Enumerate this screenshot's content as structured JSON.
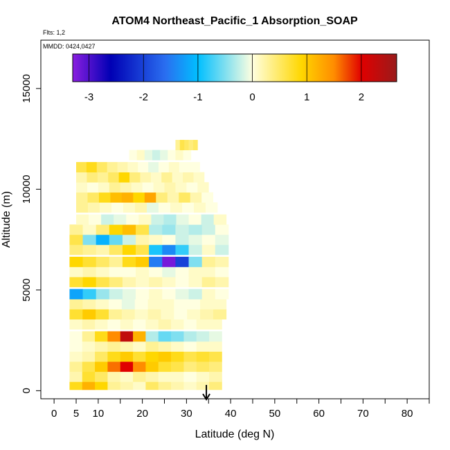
{
  "chart_data": {
    "type": "heatmap",
    "title": "ATOM4 Northeast_Pacific_1 Absorption_SOAP",
    "flights_label": "Flts: 1,2",
    "mmdd_label": "MMDD: 0424,0427",
    "xlabel": "Latitude (deg N)",
    "ylabel": "Altitude (m)",
    "xlim": [
      -3,
      85
    ],
    "ylim": [
      -400,
      17400
    ],
    "x_ticks": [
      0,
      5,
      10,
      20,
      30,
      40,
      50,
      60,
      70,
      80
    ],
    "x_minor_ticks": [
      15,
      25,
      35,
      45,
      55,
      65,
      75,
      85
    ],
    "y_ticks": [
      0,
      5000,
      10000,
      15000
    ],
    "colorbar": {
      "range": [
        -3.3,
        2.65
      ],
      "ticks": [
        -3,
        -2,
        -1,
        0,
        1,
        2
      ],
      "colors": [
        "#8a1ee0",
        "#0000b4",
        "#2a6ef0",
        "#00bfff",
        "#ffffe0",
        "#ffd700",
        "#ff8c00",
        "#e00000",
        "#9a1b1b"
      ]
    },
    "arrow": {
      "latitude": 34.5,
      "label": "surface marker"
    },
    "bands": [
      {
        "alt": 300,
        "lat_start": 3.5,
        "lat_end": 38,
        "values": [
          0.8,
          1.2,
          0.9,
          0.3,
          0.2,
          0.1,
          0.5,
          0.3,
          0.2,
          0.1,
          0.2,
          0.4
        ]
      },
      {
        "alt": 700,
        "lat_start": 3.5,
        "lat_end": 38,
        "values": [
          0.2,
          0.7,
          0.5,
          0.2,
          0.1,
          0.3,
          0.2,
          0.1,
          0.1,
          0.0,
          0.1,
          0.2
        ]
      },
      {
        "alt": 1200,
        "lat_start": 3.5,
        "lat_end": 38,
        "values": [
          0.3,
          0.6,
          1.0,
          1.6,
          2.0,
          1.5,
          1.0,
          0.7,
          0.6,
          0.4,
          0.5,
          0.4
        ]
      },
      {
        "alt": 1700,
        "lat_start": 3.5,
        "lat_end": 38,
        "values": [
          0.1,
          0.2,
          0.5,
          0.8,
          1.0,
          0.7,
          0.9,
          1.0,
          0.8,
          0.6,
          0.7,
          0.6
        ]
      },
      {
        "alt": 2200,
        "lat_start": 3.5,
        "lat_end": 38,
        "values": [
          0.0,
          0.1,
          0.2,
          0.3,
          0.2,
          0.1,
          0.3,
          0.2,
          0.1,
          0.0,
          0.1,
          0.1
        ]
      },
      {
        "alt": 2700,
        "lat_start": 3.5,
        "lat_end": 38,
        "values": [
          0.0,
          0.3,
          0.8,
          1.5,
          2.3,
          1.2,
          -0.3,
          -0.6,
          -0.5,
          -0.3,
          -0.2,
          -0.1
        ]
      },
      {
        "alt": 3300,
        "lat_start": 3.5,
        "lat_end": 38,
        "values": [
          0.1,
          0.2,
          0.1,
          0.0,
          0.1,
          0.0,
          0.1,
          0.2,
          0.1,
          0.0,
          0.1,
          0.1
        ]
      },
      {
        "alt": 3800,
        "lat_start": 3.5,
        "lat_end": 39,
        "values": [
          0.7,
          1.0,
          0.7,
          0.3,
          0.2,
          0.1,
          0.2,
          0.1,
          0.0,
          0.1,
          0.2,
          0.3
        ]
      },
      {
        "alt": 4300,
        "lat_start": 3.5,
        "lat_end": 39,
        "values": [
          0.3,
          0.2,
          0.1,
          0.0,
          -0.1,
          0.0,
          0.1,
          0.1,
          0.0,
          0.0,
          0.1,
          0.1
        ]
      },
      {
        "alt": 4800,
        "lat_start": 3.5,
        "lat_end": 39.5,
        "values": [
          -1.2,
          -0.8,
          -0.4,
          -0.2,
          -0.1,
          0.0,
          0.1,
          0.0,
          -0.1,
          -0.2,
          0.1,
          0.0
        ]
      },
      {
        "alt": 5400,
        "lat_start": 3.5,
        "lat_end": 39.5,
        "values": [
          0.7,
          0.9,
          0.6,
          0.4,
          0.2,
          0.1,
          0.2,
          0.1,
          0.0,
          0.1,
          0.3,
          0.2
        ]
      },
      {
        "alt": 5900,
        "lat_start": 3.5,
        "lat_end": 39.5,
        "values": [
          0.1,
          0.2,
          0.1,
          0.0,
          0.0,
          0.1,
          0.0,
          -0.1,
          0.0,
          0.1,
          0.1,
          0.0
        ]
      },
      {
        "alt": 6400,
        "lat_start": 3.5,
        "lat_end": 39.5,
        "values": [
          0.9,
          0.7,
          0.5,
          0.3,
          0.8,
          1.0,
          -1.5,
          -3.2,
          -2.0,
          -0.5,
          0.3,
          0.2
        ]
      },
      {
        "alt": 7000,
        "lat_start": 3.5,
        "lat_end": 39.5,
        "values": [
          0.4,
          0.3,
          0.2,
          0.5,
          0.9,
          0.6,
          -0.9,
          -1.4,
          -0.8,
          -0.2,
          0.1,
          -0.2
        ]
      },
      {
        "alt": 7500,
        "lat_start": 3.5,
        "lat_end": 39.5,
        "values": [
          0.6,
          -0.5,
          -1.1,
          -0.6,
          -0.2,
          0.2,
          0.1,
          0.0,
          -0.2,
          -0.1,
          0.0,
          -0.1
        ]
      },
      {
        "alt": 8000,
        "lat_start": 3.5,
        "lat_end": 39.5,
        "values": [
          0.3,
          0.1,
          0.4,
          0.9,
          1.1,
          0.6,
          -0.3,
          -0.4,
          -0.2,
          -0.3,
          -0.2,
          0.0
        ]
      },
      {
        "alt": 8500,
        "lat_start": 5,
        "lat_end": 39,
        "values": [
          0.1,
          0.0,
          -0.2,
          -0.1,
          0.0,
          0.1,
          -0.2,
          -0.3,
          -0.1,
          0.0,
          -0.2,
          0.1
        ]
      },
      {
        "alt": 9100,
        "lat_start": 5,
        "lat_end": 37,
        "values": [
          0.3,
          0.2,
          0.1,
          0.0,
          0.1,
          0.2,
          -0.1,
          0.0,
          0.1,
          0.0,
          0.1,
          0.0
        ]
      },
      {
        "alt": 9600,
        "lat_start": 5,
        "lat_end": 36,
        "values": [
          0.3,
          0.5,
          0.8,
          1.1,
          1.2,
          0.9,
          1.3,
          0.4,
          0.2,
          0.5,
          0.2,
          0.0
        ]
      },
      {
        "alt": 10100,
        "lat_start": 5,
        "lat_end": 35,
        "values": [
          0.1,
          0.0,
          0.1,
          0.3,
          0.2,
          0.1,
          0.0,
          0.1,
          0.2,
          0.1,
          0.0,
          0.1
        ]
      },
      {
        "alt": 10600,
        "lat_start": 5,
        "lat_end": 34,
        "values": [
          0.2,
          0.4,
          0.3,
          0.5,
          0.9,
          0.4,
          0.2,
          0.1,
          0.3,
          0.1,
          0.2,
          0.1
        ]
      },
      {
        "alt": 11100,
        "lat_start": 5,
        "lat_end": 33,
        "values": [
          0.6,
          0.8,
          0.5,
          0.3,
          0.2,
          0.1,
          0.0,
          -0.1,
          0.0,
          0.1,
          0.0,
          0.0
        ]
      },
      {
        "alt": 11700,
        "lat_start": 17,
        "lat_end": 31,
        "values": [
          0.0,
          0.1,
          -0.1,
          -0.2,
          -0.1,
          0.0,
          0.1,
          0.0
        ]
      },
      {
        "alt": 12200,
        "lat_start": 27.5,
        "lat_end": 32.5,
        "values": [
          0.3,
          0.6,
          0.5,
          0.4,
          0.5
        ]
      }
    ]
  }
}
